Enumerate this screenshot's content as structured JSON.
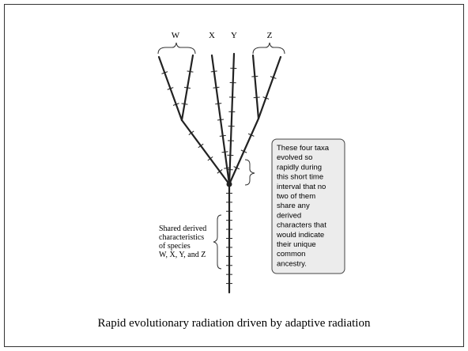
{
  "taxa": [
    "W",
    "X",
    "Y",
    "Z"
  ],
  "callout": {
    "lines": [
      "These four taxa",
      "evolved so",
      "rapidly during",
      "this short time",
      "interval that no",
      "two of them",
      "share any",
      "derived",
      "characters that",
      "would indicate",
      "their unique",
      "common",
      "ancestry."
    ]
  },
  "shared": {
    "lines": [
      "Shared derived",
      "characteristics",
      "of species",
      "W, X, Y, and Z"
    ]
  },
  "caption": "Rapid evolutionary radiation driven by adaptive radiation"
}
